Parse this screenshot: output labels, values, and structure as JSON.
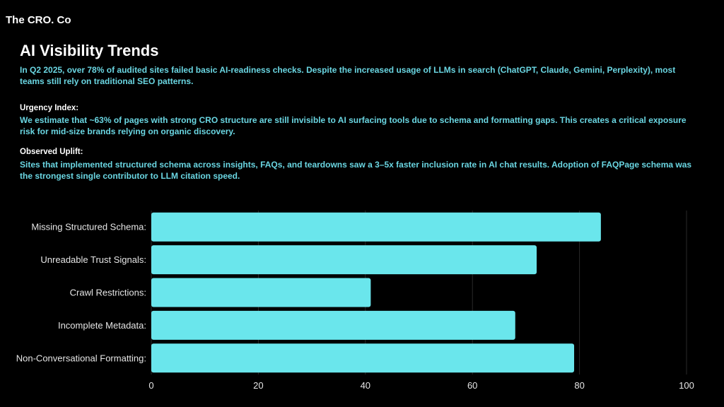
{
  "brand": "The CRO. Co",
  "title": "AI Visibility Trends",
  "intro": "In Q2 2025, over 78% of audited sites failed basic AI-readiness checks. Despite the increased usage of LLMs in search (ChatGPT, Claude, Gemini, Perplexity), most teams still rely on traditional SEO patterns.",
  "urgency": {
    "heading": "Urgency Index:",
    "text": "We estimate that ~63% of pages with strong CRO structure are still invisible to AI surfacing tools due to schema and formatting gaps. This creates a critical exposure risk for mid-size brands relying on organic discovery."
  },
  "uplift": {
    "heading": "Observed Uplift:",
    "text": "Sites that implemented structured schema across insights, FAQs, and teardowns saw a 3–5x faster inclusion rate in AI chat results. Adoption of FAQPage schema was the strongest single contributor to LLM citation speed."
  },
  "colors": {
    "bar": "#6ae6ec",
    "text_accent": "#6ad6e2",
    "background": "#000000"
  },
  "chart_data": {
    "type": "bar",
    "orientation": "horizontal",
    "categories": [
      "Missing Structured Schema:",
      "Unreadable Trust Signals:",
      "Crawl Restrictions:",
      "Incomplete Metadata:",
      "Non-Conversational Formatting:"
    ],
    "values": [
      84,
      72,
      41,
      68,
      79
    ],
    "xlim": [
      0,
      100
    ],
    "xticks": [
      "0",
      "20",
      "40",
      "60",
      "80",
      "100"
    ],
    "grid": "vertical",
    "title": "",
    "xlabel": "",
    "ylabel": ""
  }
}
